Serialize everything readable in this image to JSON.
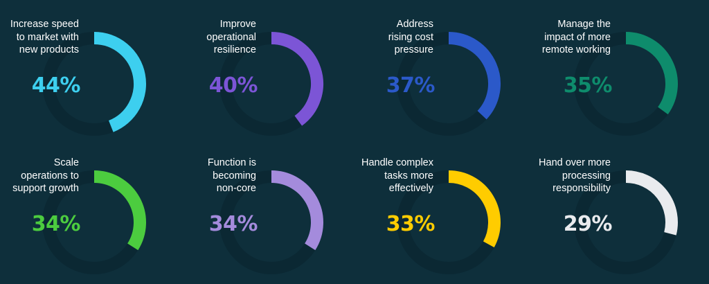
{
  "chart_data": {
    "type": "donut",
    "items": [
      {
        "label": "Increase speed\nto market with\nnew products",
        "value": 44,
        "display": "44%",
        "color": "#3dcfef"
      },
      {
        "label": "Improve\noperational\nresilience",
        "value": 40,
        "display": "40%",
        "color": "#7c55d6"
      },
      {
        "label": "Address\nrising cost\npressure",
        "value": 37,
        "display": "37%",
        "color": "#2b59c9"
      },
      {
        "label": "Manage the\nimpact of more\nremote working",
        "value": 35,
        "display": "35%",
        "color": "#0e8c6c"
      },
      {
        "label": "Scale\noperations to\nsupport growth",
        "value": 34,
        "display": "34%",
        "color": "#4ccc3f"
      },
      {
        "label": "Function is\nbecoming\nnon-core",
        "value": 34,
        "display": "34%",
        "color": "#a48bdc"
      },
      {
        "label": "Handle complex\ntasks more\neffectively",
        "value": 33,
        "display": "33%",
        "color": "#ffcc00"
      },
      {
        "label": "Hand over more\nprocessing\nresponsibility",
        "value": 29,
        "display": "29%",
        "color": "#e9ebee"
      }
    ],
    "track_color": "#0b2833",
    "background": "#0e2f3b"
  }
}
